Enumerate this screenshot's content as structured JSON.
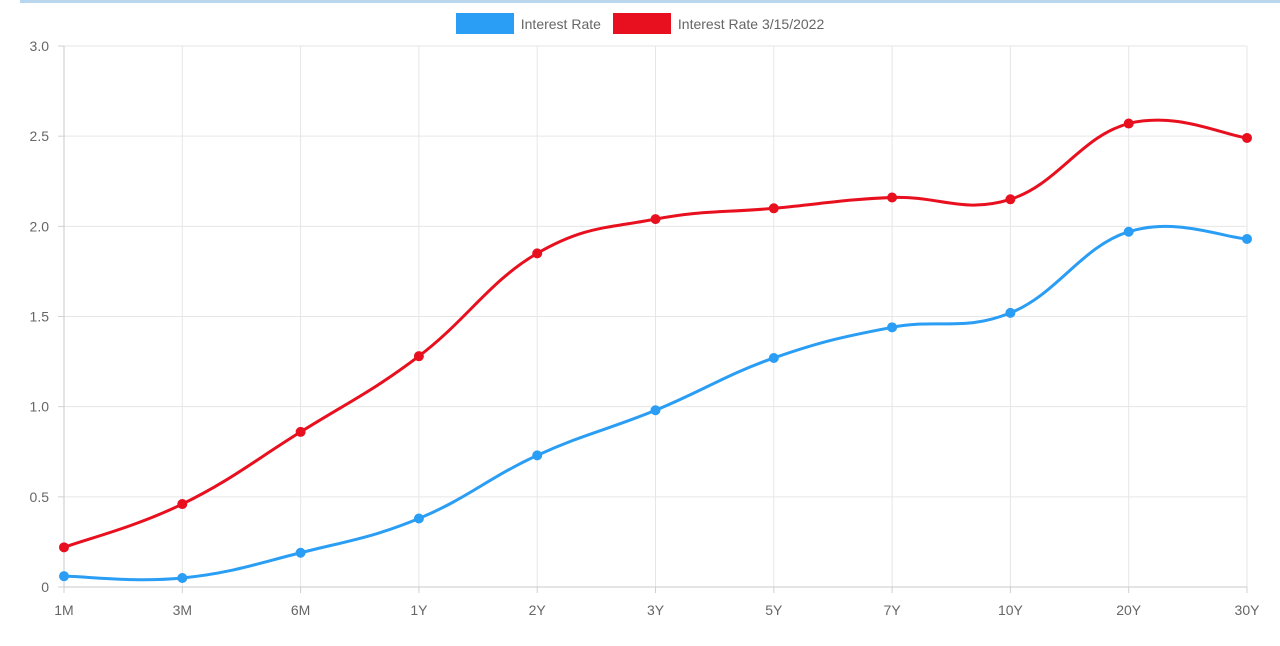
{
  "chart_data": {
    "type": "line",
    "categories": [
      "1M",
      "3M",
      "6M",
      "1Y",
      "2Y",
      "3Y",
      "5Y",
      "7Y",
      "10Y",
      "20Y",
      "30Y"
    ],
    "series": [
      {
        "name": "Interest Rate",
        "color": "#2a9df4",
        "values": [
          0.06,
          0.05,
          0.19,
          0.38,
          0.73,
          0.98,
          1.27,
          1.44,
          1.52,
          1.97,
          1.93
        ]
      },
      {
        "name": "Interest Rate 3/15/2022",
        "color": "#e8101f",
        "values": [
          0.22,
          0.46,
          0.86,
          1.28,
          1.85,
          2.04,
          2.1,
          2.16,
          2.15,
          2.57,
          2.49
        ]
      }
    ],
    "ylim": [
      0,
      3.0
    ],
    "yticks": [
      "0",
      "0.5",
      "1.0",
      "1.5",
      "2.0",
      "2.5",
      "3.0"
    ],
    "grid": true,
    "legend_position": "top-center"
  }
}
